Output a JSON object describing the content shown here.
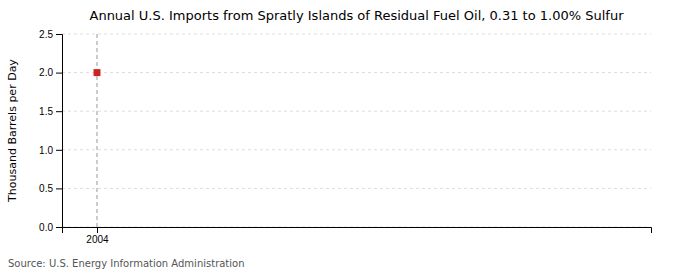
{
  "chart_data": {
    "type": "scatter",
    "title": "Annual U.S. Imports from Spratly Islands of Residual Fuel Oil, 0.31 to 1.00% Sulfur",
    "y_label": "Thousand Barrels per Day",
    "source": "Source: U.S. Energy Information Administration",
    "x": [
      2004
    ],
    "values": [
      2.0
    ],
    "color": "#cc2222",
    "marker": "square",
    "vline": 2004,
    "xlim": [
      2003.4,
      2013.5
    ],
    "xticks": [
      2004
    ],
    "ylim": [
      0,
      2.5
    ],
    "yticks": [
      {
        "value": 0.0,
        "label": "0.0"
      },
      0.5,
      {
        "value": 1.0,
        "label": "1.0"
      },
      1.5,
      {
        "value": 2.0,
        "label": "2.0"
      },
      2.5
    ],
    "grid": true
  }
}
